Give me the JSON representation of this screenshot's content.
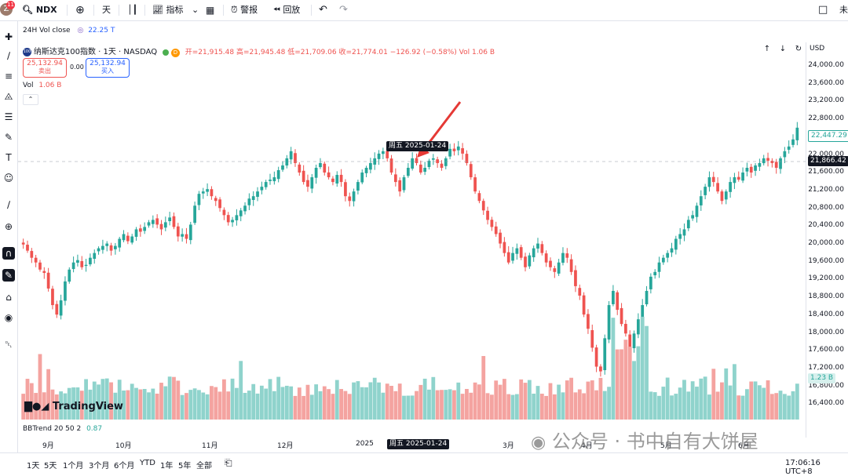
{
  "topbar": {
    "badge": "11",
    "avatar": "Z",
    "symbol": "NDX",
    "interval": "天",
    "indicators": "指标",
    "alerts": "警报",
    "replay": "回放",
    "right_text": "未"
  },
  "header": {
    "vol_close_label": "24H Vol close",
    "vol_close_value": "22.25 T",
    "instrument": "纳斯达克100指数 · 1天 · NASDAQ",
    "market_badge": "D",
    "open": "开=21,915.48",
    "high": "高=21,945.48",
    "low": "低=21,709.06",
    "close": "收=21,774.01",
    "change": "−126.92 (−0.58%)",
    "vol": "Vol 1.06 B",
    "sell_price": "25,132.94",
    "sell_label": "卖出",
    "spread": "0.00",
    "buy_price": "25,132.94",
    "buy_label": "买入",
    "vol_label": "Vol",
    "vol_value": "1.06 B",
    "currency": "USD"
  },
  "price_axis": {
    "ticks": [
      "24,000.00",
      "23,600.00",
      "23,200.00",
      "22,800.00",
      "22,400.00",
      "22,000.00",
      "21,600.00",
      "21,200.00",
      "20,800.00",
      "20,400.00",
      "20,000.00",
      "19,600.00",
      "19,200.00",
      "18,800.00",
      "18,400.00",
      "18,000.00",
      "17,600.00",
      "17,200.00",
      "16,800.00",
      "16,400.00"
    ],
    "last_price": "22,447.29",
    "crosshair_price": "21,866.42",
    "vol_tag": "1.23 B"
  },
  "time_axis": {
    "ticks": [
      "9月",
      "10月",
      "11月",
      "12月",
      "2025",
      "3月",
      "4月",
      "5月",
      "6月"
    ],
    "crosshair_date": "周五 2025-01-24"
  },
  "tooltip": "周五 2025-01-24",
  "bbtrend": {
    "label": "BBTrend 20 50 2",
    "value": "0.87"
  },
  "watermark": {
    "logo": "TradingView",
    "text": "公众号 · 书中自有大饼屋"
  },
  "bottombar": {
    "ranges": [
      "1天",
      "5天",
      "1个月",
      "3个月",
      "6个月",
      "YTD",
      "1年",
      "5年",
      "全部"
    ],
    "clock": "17:06:16 UTC+8"
  },
  "colors": {
    "up": "#26a69a",
    "down": "#ef5350",
    "up_vol": "#8fd3cc",
    "down_vol": "#f4a3a0",
    "accent": "#2962ff"
  },
  "chart_data": {
    "type": "candlestick",
    "symbol": "NDX",
    "ylim": [
      16200,
      24200
    ],
    "closes": [
      19980,
      19850,
      19700,
      19600,
      19450,
      19380,
      19050,
      18700,
      18500,
      18800,
      19200,
      19450,
      19600,
      19650,
      19500,
      19550,
      19700,
      19800,
      19900,
      19950,
      20000,
      19850,
      19950,
      20100,
      20200,
      20050,
      20150,
      20300,
      20250,
      20350,
      20450,
      20500,
      20400,
      20300,
      20450,
      20550,
      20350,
      20150,
      20200,
      20100,
      20400,
      20800,
      21050,
      21100,
      21150,
      21000,
      20900,
      20750,
      20600,
      20450,
      20500,
      20600,
      20700,
      20800,
      20950,
      21000,
      21100,
      21200,
      21300,
      21350,
      21400,
      21550,
      21650,
      21800,
      21950,
      21700,
      21500,
      21300,
      21200,
      21400,
      21600,
      21700,
      21500,
      21400,
      21300,
      21450,
      21300,
      21000,
      20900,
      21100,
      21300,
      21500,
      21600,
      21700,
      21800,
      21900,
      21950,
      21800,
      21500,
      21300,
      21100,
      21400,
      21600,
      21800,
      21700,
      21500,
      21600,
      21750,
      21800,
      21700,
      21600,
      21800,
      22000,
      21950,
      22050,
      21900,
      21700,
      21400,
      21100,
      20900,
      20700,
      20500,
      20350,
      20200,
      20000,
      19800,
      19600,
      19800,
      19900,
      19700,
      19500,
      19750,
      19900,
      20000,
      19800,
      19600,
      19500,
      19400,
      19600,
      19800,
      19700,
      19400,
      19100,
      18900,
      18500,
      18200,
      17800,
      17400,
      17300,
      18000,
      18700,
      19000,
      18600,
      18300,
      18100,
      17800,
      18100,
      18400,
      18700,
      19000,
      19300,
      19400,
      19600,
      19700,
      19800,
      19900,
      20100,
      20200,
      20300,
      20500,
      20600,
      20800,
      21000,
      21200,
      21400,
      21300,
      21100,
      20900,
      21100,
      21300,
      21400,
      21350,
      21500,
      21600,
      21500,
      21650,
      21700,
      21800,
      21750,
      21700,
      21600,
      21800,
      21950,
      22050,
      22200,
      22447.29
    ]
  }
}
